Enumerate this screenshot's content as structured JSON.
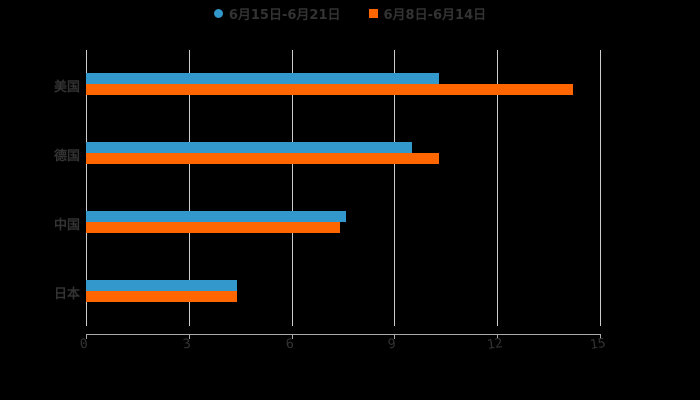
{
  "legend": [
    {
      "label": "6月15日-6月21日",
      "color": "#3399CC",
      "shape": "circle"
    },
    {
      "label": "6月8日-6月14日",
      "color": "#FF6600",
      "shape": "square"
    }
  ],
  "axis": {
    "ticks": [
      "0",
      "3",
      "6",
      "9",
      "12",
      "15"
    ]
  },
  "categories": [
    "美国",
    "德国",
    "中国",
    "日本"
  ],
  "chart_data": {
    "type": "bar",
    "orientation": "horizontal",
    "categories": [
      "美国",
      "德国",
      "中国",
      "日本"
    ],
    "series": [
      {
        "name": "6月15日-6月21日",
        "color": "#3399CC",
        "values": [
          10.3,
          9.5,
          7.6,
          4.4
        ]
      },
      {
        "name": "6月8日-6月14日",
        "color": "#FF6600",
        "values": [
          14.2,
          10.3,
          7.4,
          4.4
        ]
      }
    ],
    "xlim": [
      0,
      15
    ],
    "xticks": [
      0,
      3,
      6,
      9,
      12,
      15
    ],
    "grid": true,
    "legend_position": "top"
  }
}
